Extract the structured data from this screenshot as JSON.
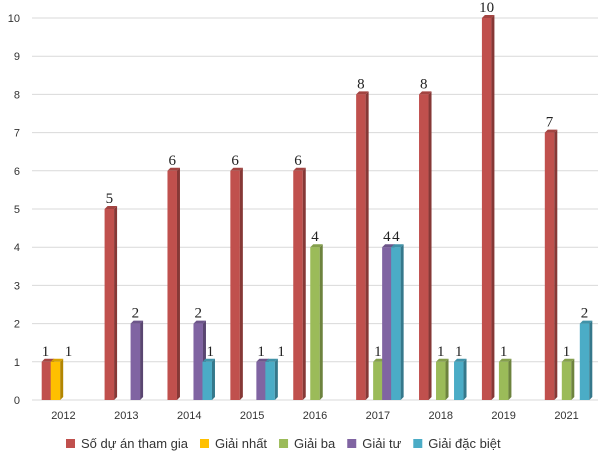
{
  "chart_data": {
    "type": "bar",
    "title": "",
    "xlabel": "",
    "ylabel": "",
    "categories": [
      "2012",
      "2013",
      "2014",
      "2015",
      "2016",
      "2017",
      "2018",
      "2019",
      "2021"
    ],
    "ylim": [
      0,
      10
    ],
    "yticks": [
      0,
      1,
      2,
      3,
      4,
      5,
      6,
      7,
      8,
      9,
      10
    ],
    "grid": true,
    "legend_position": "bottom",
    "series": [
      {
        "name": "Số dự án tham gia",
        "color": "#c0504d",
        "values": [
          1,
          5,
          6,
          6,
          6,
          8,
          8,
          10,
          7
        ]
      },
      {
        "name": "Giải nhất",
        "color": "#ffc000",
        "values": [
          1,
          null,
          null,
          null,
          null,
          null,
          null,
          null,
          null
        ]
      },
      {
        "name": "Giải ba",
        "color": "#9bbb59",
        "values": [
          null,
          null,
          null,
          null,
          4,
          1,
          1,
          1,
          1
        ]
      },
      {
        "name": "Giải tư",
        "color": "#8064a2",
        "values": [
          null,
          2,
          2,
          1,
          null,
          4,
          null,
          null,
          null
        ]
      },
      {
        "name": "Giải đặc biệt",
        "color": "#4bacc6",
        "values": [
          null,
          null,
          1,
          1,
          null,
          4,
          1,
          null,
          2
        ]
      }
    ],
    "data_labels": [
      {
        "category": "2012",
        "series": "Số dự án tham gia",
        "text": "1"
      },
      {
        "category": "2012",
        "series": "Giải nhất",
        "text": "1"
      },
      {
        "category": "2013",
        "series": "Số dự án tham gia",
        "text": "5"
      },
      {
        "category": "2013",
        "series": "Giải tư",
        "text": "2"
      },
      {
        "category": "2014",
        "series": "Số dự án tham gia",
        "text": "6"
      },
      {
        "category": "2014",
        "series": "Giải tư",
        "text": "2"
      },
      {
        "category": "2014",
        "series": "Giải đặc biệt",
        "text": "1"
      },
      {
        "category": "2015",
        "series": "Số dự án tham gia",
        "text": "6"
      },
      {
        "category": "2015",
        "series": "Giải tư",
        "text": "1"
      },
      {
        "category": "2015",
        "series": "Giải đặc biệt",
        "text": "1"
      },
      {
        "category": "2016",
        "series": "Số dự án tham gia",
        "text": "6"
      },
      {
        "category": "2016",
        "series": "Giải ba",
        "text": "4"
      },
      {
        "category": "2017",
        "series": "Số dự án tham gia",
        "text": "8"
      },
      {
        "category": "2017",
        "series": "Giải ba",
        "text": "1"
      },
      {
        "category": "2017",
        "series": "Giải tư",
        "text": "4"
      },
      {
        "category": "2017",
        "series": "Giải đặc biệt",
        "text": "4"
      },
      {
        "category": "2018",
        "series": "Số dự án tham gia",
        "text": "8"
      },
      {
        "category": "2018",
        "series": "Giải ba",
        "text": "1"
      },
      {
        "category": "2018",
        "series": "Giải đặc biệt",
        "text": "1"
      },
      {
        "category": "2019",
        "series": "Số dự án tham gia",
        "text": "10"
      },
      {
        "category": "2019",
        "series": "Giải ba",
        "text": "1"
      },
      {
        "category": "2021",
        "series": "Số dự án tham gia",
        "text": "7"
      },
      {
        "category": "2021",
        "series": "Giải ba",
        "text": "1"
      },
      {
        "category": "2021",
        "series": "Giải đặc biệt",
        "text": "2"
      }
    ]
  }
}
